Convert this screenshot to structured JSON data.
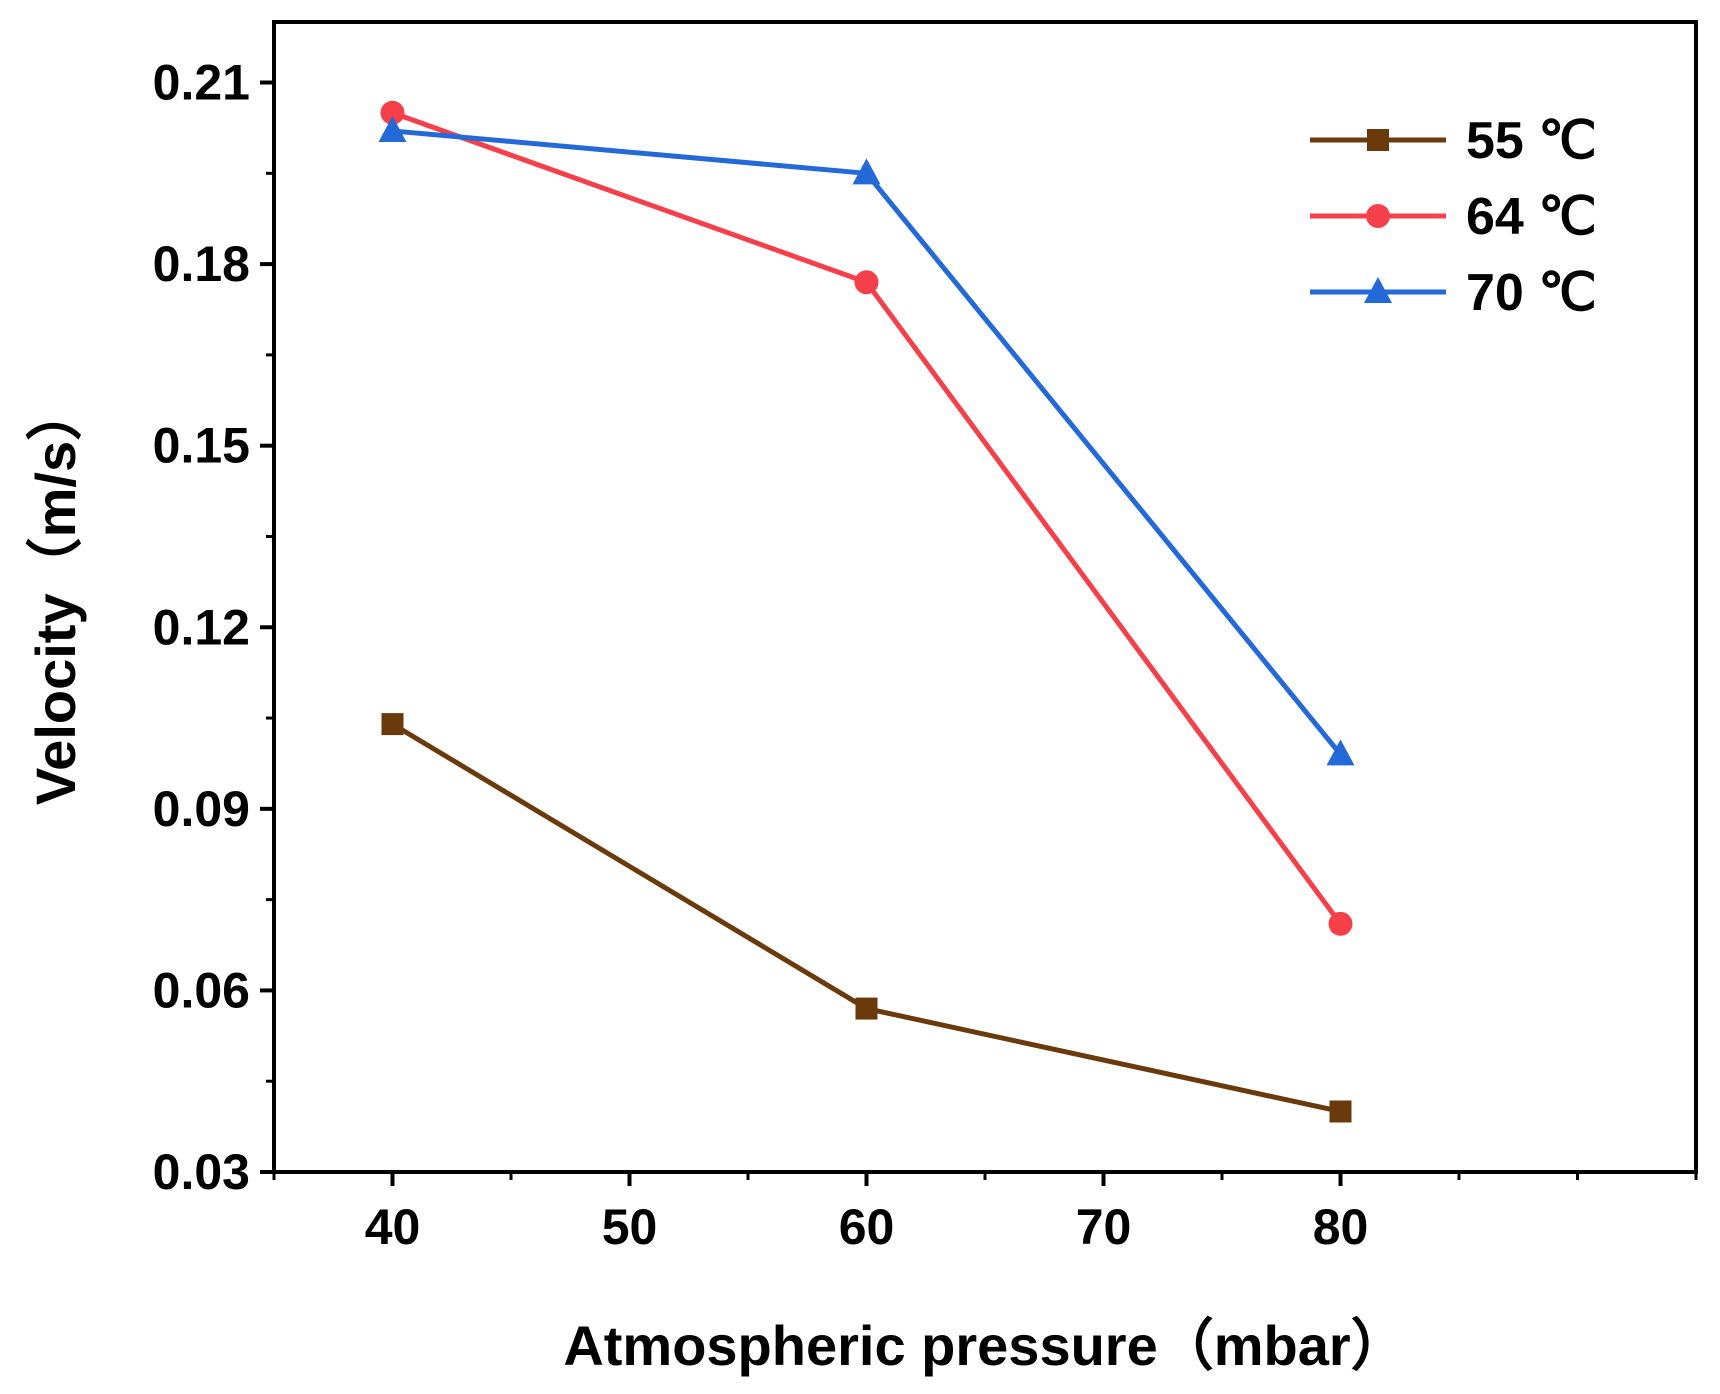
{
  "chart_data": {
    "type": "line",
    "title": "",
    "xlabel": "Atmospheric pressure（mbar）",
    "ylabel": "Velocity（m/s）",
    "xlim": [
      35,
      95
    ],
    "ylim": [
      0.03,
      0.22
    ],
    "xticks": [
      40,
      50,
      60,
      70,
      80
    ],
    "xtick_labels": [
      "40",
      "50",
      "60",
      "70",
      "80"
    ],
    "yticks": [
      0.03,
      0.06,
      0.09,
      0.12,
      0.15,
      0.18,
      0.21
    ],
    "ytick_labels": [
      "0.03",
      "0.06",
      "0.09",
      "0.12",
      "0.15",
      "0.18",
      "0.21"
    ],
    "grid": false,
    "legend_position": "top-right",
    "x": [
      40,
      60,
      80
    ],
    "series": [
      {
        "name": "55 ℃",
        "marker": "square",
        "color": "#6b3a0c",
        "values": [
          0.104,
          0.057,
          0.04
        ]
      },
      {
        "name": "64 ℃",
        "marker": "circle",
        "color": "#f5404a",
        "values": [
          0.205,
          0.177,
          0.071
        ]
      },
      {
        "name": "70 ℃",
        "marker": "triangle",
        "color": "#2469d8",
        "values": [
          0.202,
          0.195,
          0.099
        ]
      }
    ]
  }
}
